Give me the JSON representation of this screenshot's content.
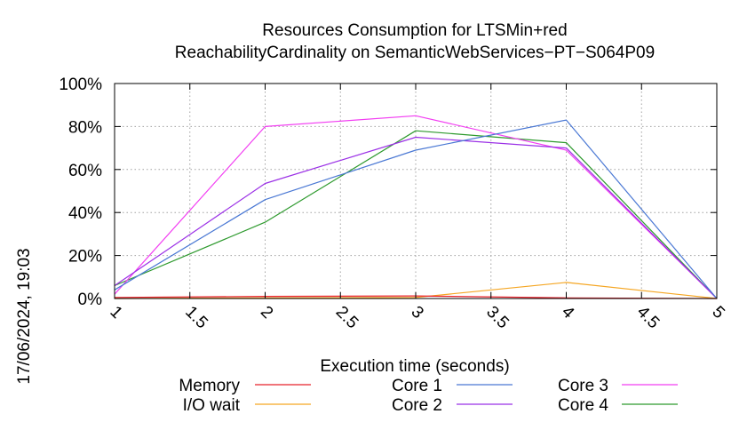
{
  "chart_data": {
    "type": "line",
    "title": "Resources Consumption for LTSMin+red",
    "subtitle": "ReachabilityCardinality on SemanticWebServices−PT−S064P09",
    "xlabel": "Execution time (seconds)",
    "ylabel": "",
    "side_label": "17/06/2024, 19:03",
    "xlim": [
      1,
      5
    ],
    "ylim": [
      0,
      100
    ],
    "x_ticks": [
      "1",
      "1.5",
      "2",
      "2.5",
      "3",
      "3.5",
      "4",
      "4.5",
      "5"
    ],
    "y_ticks": [
      "0%",
      "20%",
      "40%",
      "60%",
      "80%",
      "100%"
    ],
    "x": [
      1,
      2,
      3,
      4,
      5
    ],
    "grid": true,
    "legend_position": "bottom",
    "series": [
      {
        "name": "Memory",
        "color": "#e8222b",
        "values": [
          0.5,
          1,
          1.2,
          0.3,
          0
        ]
      },
      {
        "name": "I/O wait",
        "color": "#f5a623",
        "values": [
          0,
          0.3,
          0.5,
          7.5,
          0
        ]
      },
      {
        "name": "Core 1",
        "color": "#4a78d4",
        "values": [
          4,
          46,
          69,
          83,
          0
        ]
      },
      {
        "name": "Core 2",
        "color": "#9b30e6",
        "values": [
          6,
          53.5,
          75,
          70,
          0
        ]
      },
      {
        "name": "Core 3",
        "color": "#f23df2",
        "values": [
          2,
          80,
          85,
          69,
          0
        ]
      },
      {
        "name": "Core 4",
        "color": "#2e9a2e",
        "values": [
          6,
          35.5,
          78,
          72.5,
          0
        ]
      }
    ]
  }
}
